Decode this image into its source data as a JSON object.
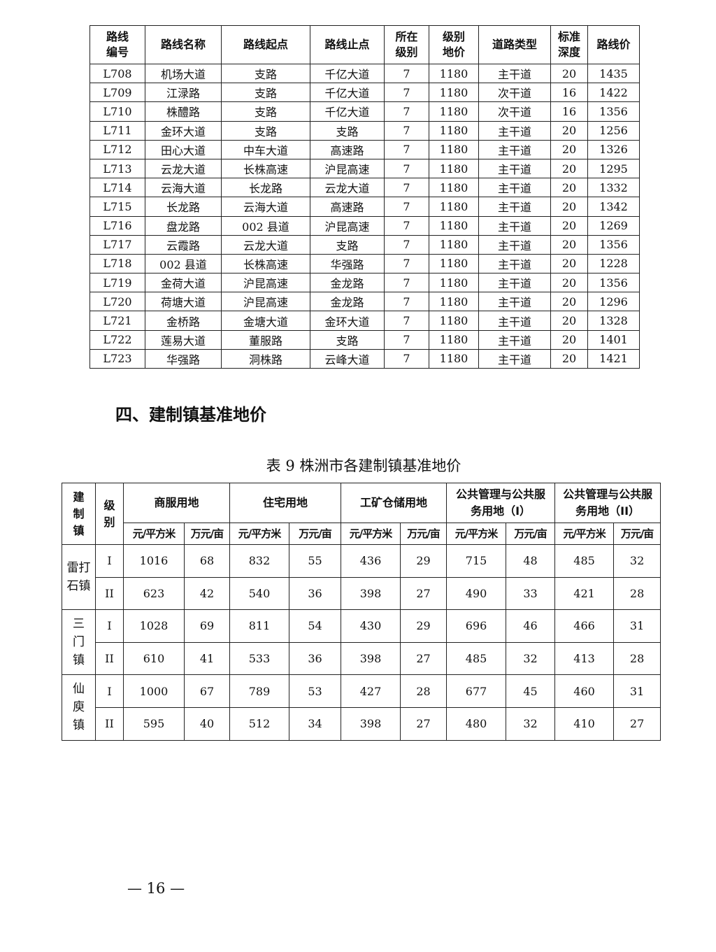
{
  "table8": {
    "headers": [
      "路线\n编号",
      "路线名称",
      "路线起点",
      "路线止点",
      "所在\n级别",
      "级别\n地价",
      "道路类型",
      "标准\n深度",
      "路线价"
    ],
    "rows": [
      [
        "L708",
        "机场大道",
        "支路",
        "千亿大道",
        "7",
        "1180",
        "主干道",
        "20",
        "1435"
      ],
      [
        "L709",
        "江渌路",
        "支路",
        "千亿大道",
        "7",
        "1180",
        "次干道",
        "16",
        "1422"
      ],
      [
        "L710",
        "株醴路",
        "支路",
        "千亿大道",
        "7",
        "1180",
        "次干道",
        "16",
        "1356"
      ],
      [
        "L711",
        "金环大道",
        "支路",
        "支路",
        "7",
        "1180",
        "主干道",
        "20",
        "1256"
      ],
      [
        "L712",
        "田心大道",
        "中车大道",
        "高速路",
        "7",
        "1180",
        "主干道",
        "20",
        "1326"
      ],
      [
        "L713",
        "云龙大道",
        "长株高速",
        "沪昆高速",
        "7",
        "1180",
        "主干道",
        "20",
        "1295"
      ],
      [
        "L714",
        "云海大道",
        "长龙路",
        "云龙大道",
        "7",
        "1180",
        "主干道",
        "20",
        "1332"
      ],
      [
        "L715",
        "长龙路",
        "云海大道",
        "高速路",
        "7",
        "1180",
        "主干道",
        "20",
        "1342"
      ],
      [
        "L716",
        "盘龙路",
        "002 县道",
        "沪昆高速",
        "7",
        "1180",
        "主干道",
        "20",
        "1269"
      ],
      [
        "L717",
        "云霞路",
        "云龙大道",
        "支路",
        "7",
        "1180",
        "主干道",
        "20",
        "1356"
      ],
      [
        "L718",
        "002 县道",
        "长株高速",
        "华强路",
        "7",
        "1180",
        "主干道",
        "20",
        "1228"
      ],
      [
        "L719",
        "金荷大道",
        "沪昆高速",
        "金龙路",
        "7",
        "1180",
        "主干道",
        "20",
        "1356"
      ],
      [
        "L720",
        "荷塘大道",
        "沪昆高速",
        "金龙路",
        "7",
        "1180",
        "主干道",
        "20",
        "1296"
      ],
      [
        "L721",
        "金桥路",
        "金塘大道",
        "金环大道",
        "7",
        "1180",
        "主干道",
        "20",
        "1328"
      ],
      [
        "L722",
        "莲易大道",
        "董服路",
        "支路",
        "7",
        "1180",
        "主干道",
        "20",
        "1401"
      ],
      [
        "L723",
        "华强路",
        "洞株路",
        "云峰大道",
        "7",
        "1180",
        "主干道",
        "20",
        "1421"
      ]
    ]
  },
  "section_title": "四、建制镇基准地价",
  "table9": {
    "caption": "表 9 株洲市各建制镇基准地价",
    "h_town": "建\n制\n镇",
    "h_level": "级\n别",
    "groups": [
      "商服用地",
      "住宅用地",
      "工矿仓储用地",
      "公共管理与公共服\n务用地（I）",
      "公共管理与公共服\n务用地（II）"
    ],
    "unit_a": "元/平方米",
    "unit_b": "万元/亩",
    "towns": [
      {
        "name": "雷打\n石镇",
        "rows": [
          [
            "I",
            "1016",
            "68",
            "832",
            "55",
            "436",
            "29",
            "715",
            "48",
            "485",
            "32"
          ],
          [
            "II",
            "623",
            "42",
            "540",
            "36",
            "398",
            "27",
            "490",
            "33",
            "421",
            "28"
          ]
        ]
      },
      {
        "name": "三\n门\n镇",
        "rows": [
          [
            "I",
            "1028",
            "69",
            "811",
            "54",
            "430",
            "29",
            "696",
            "46",
            "466",
            "31"
          ],
          [
            "II",
            "610",
            "41",
            "533",
            "36",
            "398",
            "27",
            "485",
            "32",
            "413",
            "28"
          ]
        ]
      },
      {
        "name": "仙\n庾\n镇",
        "rows": [
          [
            "I",
            "1000",
            "67",
            "789",
            "53",
            "427",
            "28",
            "677",
            "45",
            "460",
            "31"
          ],
          [
            "II",
            "595",
            "40",
            "512",
            "34",
            "398",
            "27",
            "480",
            "32",
            "410",
            "27"
          ]
        ]
      }
    ]
  },
  "page_number": "— 16 —"
}
